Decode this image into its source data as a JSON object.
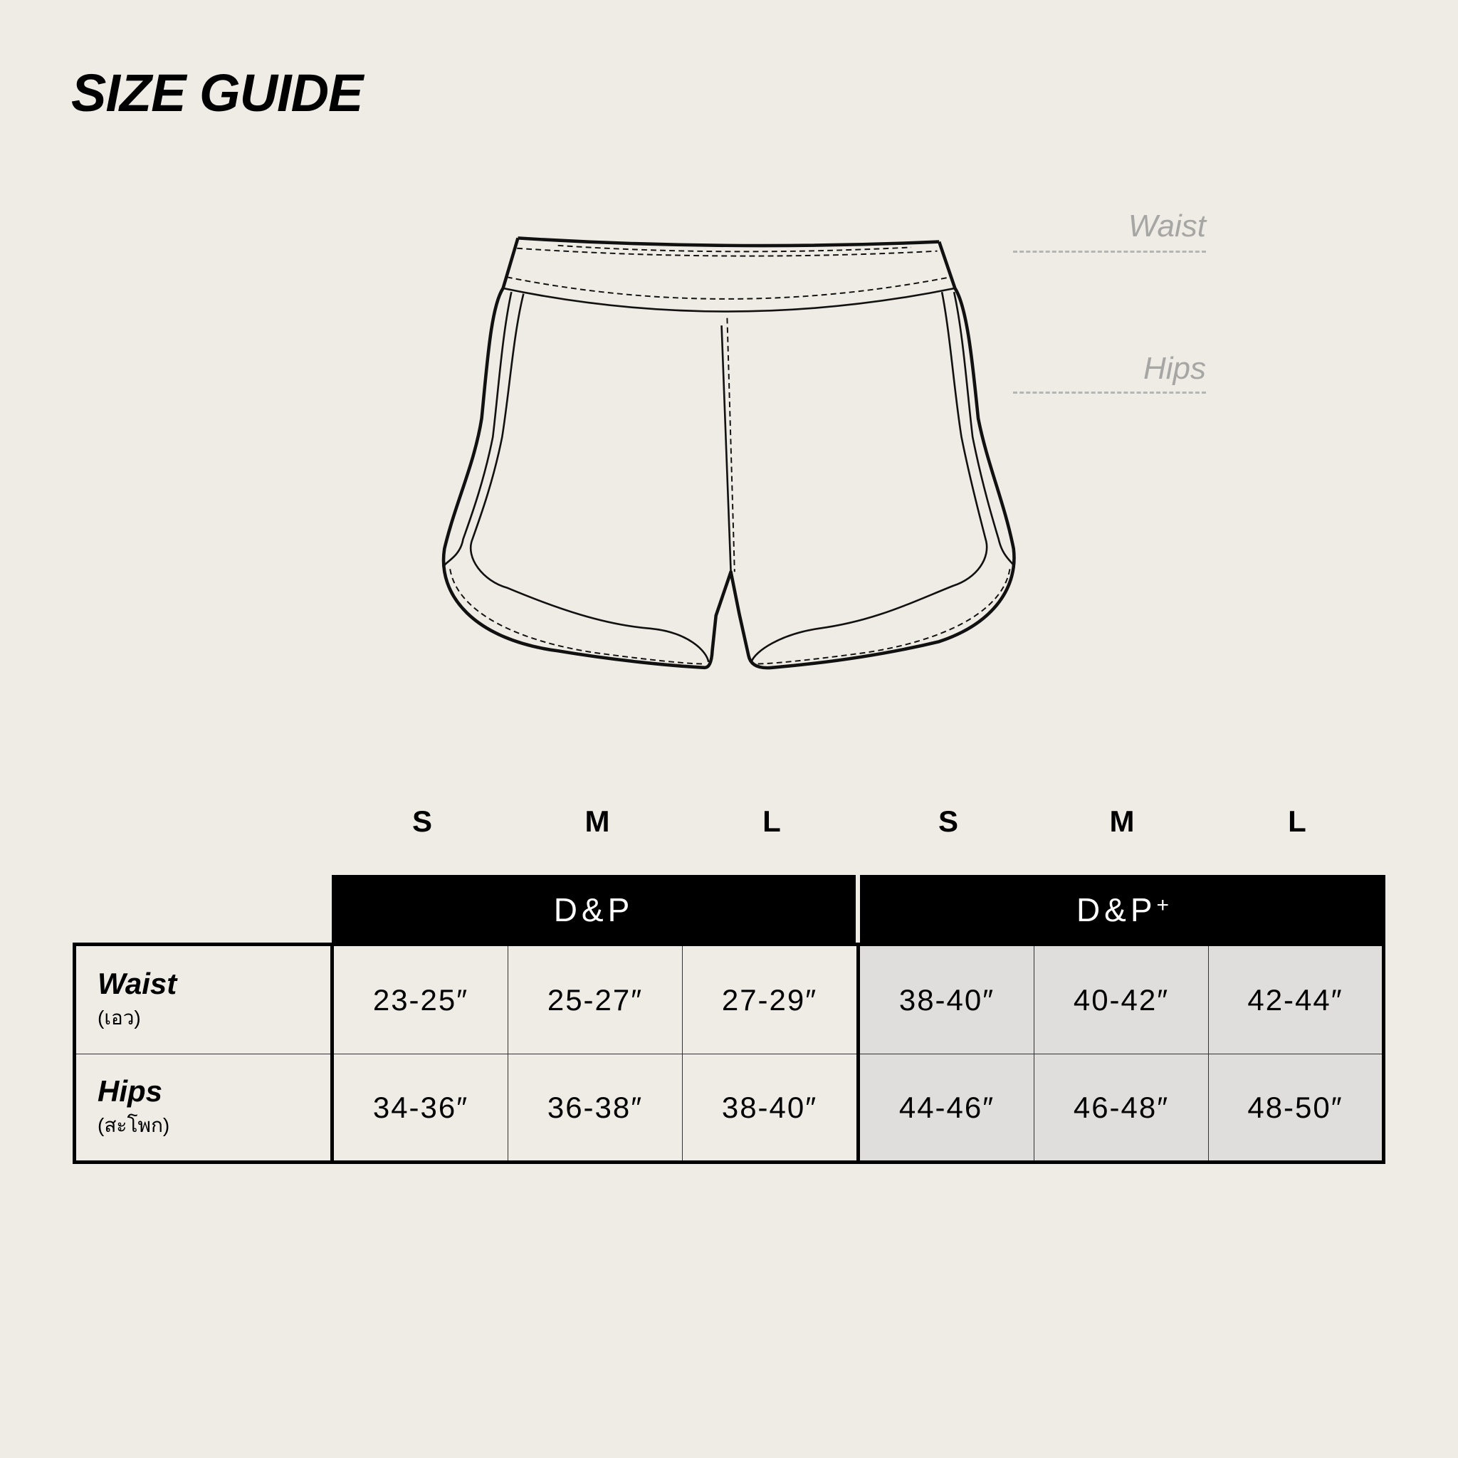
{
  "title": "SIZE GUIDE",
  "measure_labels": {
    "waist": "Waist",
    "hips": "Hips"
  },
  "size_headers": [
    "S",
    "M",
    "L",
    "S",
    "M",
    "L"
  ],
  "groups": [
    {
      "label": "D&P",
      "sup": ""
    },
    {
      "label": "D&P",
      "sup": "+"
    }
  ],
  "rows": [
    {
      "label": "Waist",
      "label_th": "(เอว)",
      "values": [
        "23-25″",
        "25-27″",
        "27-29″",
        "38-40″",
        "40-42″",
        "42-44″"
      ]
    },
    {
      "label": "Hips",
      "label_th": "(สะโพก)",
      "values": [
        "34-36″",
        "36-38″",
        "38-40″",
        "44-46″",
        "46-48″",
        "48-50″"
      ]
    }
  ],
  "colors": {
    "background": "#efece5",
    "header": "#000000",
    "plus_cells": "#dfdedc",
    "measure_label": "#a6a6a4"
  }
}
